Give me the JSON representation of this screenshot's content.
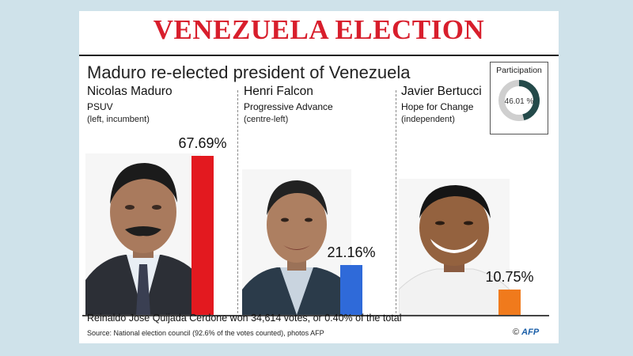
{
  "header": {
    "title": "VENEZUELA ELECTION",
    "subtitle": "Maduro re-elected president of Venezuela"
  },
  "participation": {
    "label": "Participation",
    "value_text": "46.01 %",
    "value": 46.01
  },
  "chart_data": {
    "type": "bar",
    "title": "Maduro re-elected president of Venezuela",
    "unit": "%",
    "ylim": [
      0,
      70
    ],
    "grid": false,
    "categories": [
      "Nicolas Maduro",
      "Henri Falcon",
      "Javier Bertucci"
    ],
    "values": [
      67.69,
      21.16,
      10.75
    ],
    "value_labels": [
      "67.69%",
      "21.16%",
      "10.75%"
    ],
    "parties": [
      "PSUV",
      "Progressive Advance",
      "Hope for Change"
    ],
    "descriptions": [
      "(left, incumbent)",
      "(centre-left)",
      "(independent)"
    ],
    "colors": [
      "#e3191f",
      "#2f6ad9",
      "#f07a1c"
    ]
  },
  "footnote": "Reinaldo Jose Quijada Cerdone won 34,614 votes, or 0.40% of the total",
  "source": "Source: National election council (92.6% of the votes counted), photos AFP",
  "credit": {
    "copyright": "©",
    "agency": "AFP"
  }
}
